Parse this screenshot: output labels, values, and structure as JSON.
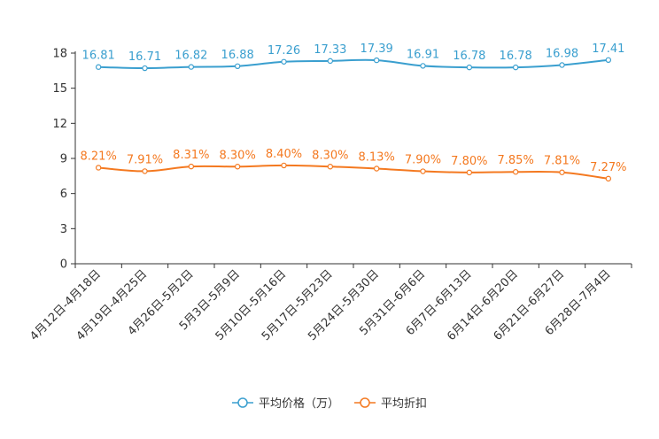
{
  "chart_data": {
    "type": "line",
    "title": "",
    "xlabel": "",
    "ylabel": "",
    "ylim": [
      0,
      18
    ],
    "yticks": [
      0,
      3,
      6,
      9,
      12,
      15,
      18
    ],
    "grid": false,
    "legend_position": "bottom-center",
    "categories": [
      "4月12日-4月18日",
      "4月19日-4月25日",
      "4月26日-5月2日",
      "5月3日-5月9日",
      "5月10日-5月16日",
      "5月17日-5月23日",
      "5月24日-5月30日",
      "5月31日-6月6日",
      "6月7日-6月13日",
      "6月14日-6月20日",
      "6月21日-6月27日",
      "6月28日-7月4日"
    ],
    "series": [
      {
        "name": "平均价格（万）",
        "color": "#3a9fcf",
        "values": [
          16.81,
          16.71,
          16.82,
          16.88,
          17.26,
          17.33,
          17.39,
          16.91,
          16.78,
          16.78,
          16.98,
          17.41
        ],
        "labels": [
          "16.81",
          "16.71",
          "16.82",
          "16.88",
          "17.26",
          "17.33",
          "17.39",
          "16.91",
          "16.78",
          "16.78",
          "16.98",
          "17.41"
        ]
      },
      {
        "name": "平均折扣",
        "color": "#f47920",
        "values": [
          8.21,
          7.91,
          8.31,
          8.3,
          8.4,
          8.3,
          8.13,
          7.9,
          7.8,
          7.85,
          7.81,
          7.27
        ],
        "labels": [
          "8.21%",
          "7.91%",
          "8.31%",
          "8.30%",
          "8.40%",
          "8.30%",
          "8.13%",
          "7.90%",
          "7.80%",
          "7.85%",
          "7.81%",
          "7.27%"
        ]
      }
    ]
  }
}
